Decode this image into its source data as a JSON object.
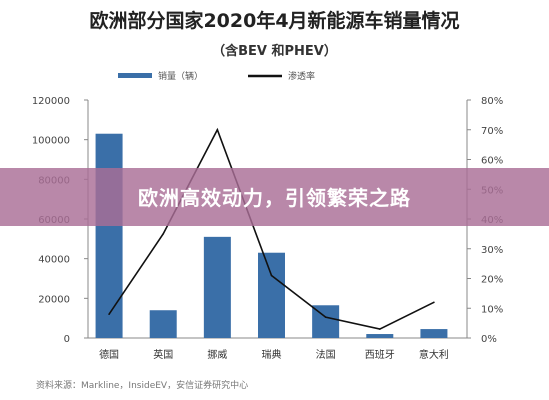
{
  "chart_data": {
    "type": "bar",
    "title": "欧洲部分国家2020年4月新能源车销量情况",
    "subtitle": "（含BEV 和PHEV）",
    "categories": [
      "德国",
      "英国",
      "挪威",
      "瑞典",
      "法国",
      "西班牙",
      "意大利"
    ],
    "series": [
      {
        "name": "销量（辆）",
        "kind": "bar",
        "axis": "left",
        "values": [
          103000,
          14000,
          51000,
          43000,
          16500,
          2000,
          4500
        ],
        "color": "#3a6fa8"
      },
      {
        "name": "渗透率",
        "kind": "line",
        "axis": "right",
        "values": [
          0.08,
          0.35,
          0.7,
          0.21,
          0.07,
          0.03,
          0.12
        ],
        "color": "#111111"
      }
    ],
    "y_left": {
      "min": 0,
      "max": 120000,
      "ticks": [
        "0",
        "20000",
        "40000",
        "60000",
        "80000",
        "100000",
        "120000"
      ]
    },
    "y_right": {
      "min": 0,
      "max": 0.8,
      "ticks": [
        "0%",
        "10%",
        "20%",
        "30%",
        "40%",
        "50%",
        "60%",
        "70%",
        "80%"
      ]
    },
    "legend_position": "top-center",
    "grid": false
  },
  "overlay": {
    "banner_text": "欧洲高效动力，引领繁荣之路"
  },
  "source_note": "资料来源：Markline，InsideEV，安信证券研究中心"
}
